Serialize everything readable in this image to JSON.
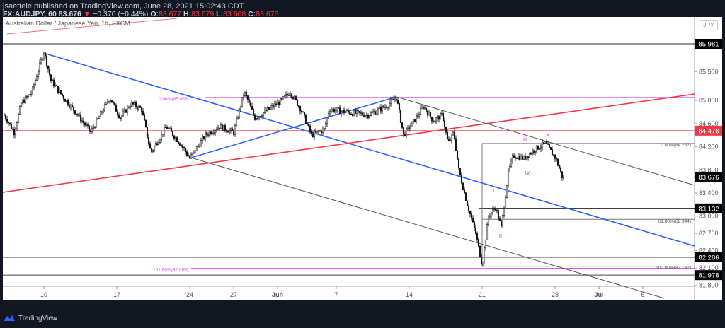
{
  "header": {
    "publisher_line": "jsaettele published on TradingView.com, June 28, 2021 15:02:43 CDT",
    "symbol": "FX:AUDJPY, 60",
    "last": "83.676",
    "change_arrow": "▼",
    "change": "−0.370 (−0.44%)",
    "o_label": "O:",
    "o": "83.677",
    "h_label": "H:",
    "h": "83.679",
    "l_label": "L:",
    "l": "83.668",
    "c_label": "C:",
    "c": "83.676"
  },
  "chart_title": "Australian Dollar / Japanese Yen, 1h, FXCM",
  "currency_button": "JPY",
  "footer": {
    "brand": "TradingView"
  },
  "colors": {
    "background": "#131722",
    "panel": "#ffffff",
    "blue_trend": "#2962ff",
    "red_trend": "#f23645",
    "fib": "#e040fb",
    "last_price_badge": "#f23645",
    "level_badge": "#000000"
  },
  "chart_data": {
    "type": "candlestick",
    "title": "Australian Dollar / Japanese Yen, 1h, FXCM",
    "xlabel": "",
    "ylabel": "JPY",
    "ylim": [
      81.6,
      86.3
    ],
    "x_ticks": [
      "10",
      "17",
      "24",
      "27",
      "Jun",
      "7",
      "14",
      "21",
      "28",
      "Jul",
      "6"
    ],
    "y_ticks": [
      "85.500",
      "85.000",
      "84.600",
      "84.200",
      "83.800",
      "83.400",
      "83.000",
      "82.700",
      "82.400",
      "82.100",
      "81.800"
    ],
    "price_badges": [
      {
        "value": "85.981",
        "color": "#000000"
      },
      {
        "value": "84.478",
        "color": "#f23645"
      },
      {
        "value": "83.676",
        "color": "#000000"
      },
      {
        "value": "83.132",
        "color": "#000000"
      },
      {
        "value": "82.286",
        "color": "#000000"
      },
      {
        "value": "81.978",
        "color": "#000000"
      }
    ],
    "horizontal_levels": [
      85.981,
      84.478,
      83.132,
      82.286,
      81.978
    ],
    "fib_annotations": [
      {
        "label": "0.00%(85.053)",
        "price": 85.053,
        "color": "#e040fb"
      },
      {
        "label": "161.80%(82.095)",
        "price": 82.095,
        "color": "#e040fb"
      },
      {
        "label": "0.00%(84.257)",
        "price": 84.257,
        "color": "#555555"
      },
      {
        "label": "61.80%(82.944)",
        "price": 82.944,
        "color": "#555555"
      },
      {
        "label": "100.00%(82.132)",
        "price": 82.132,
        "color": "#555555"
      }
    ],
    "wave_labels": [
      "i",
      "ii",
      "iii",
      "iv",
      "v"
    ],
    "key_points": [
      {
        "date": "May 10",
        "price": 85.85,
        "note": "high"
      },
      {
        "date": "May 24",
        "price": 84.0,
        "note": "low"
      },
      {
        "date": "Jun 11",
        "price": 85.05,
        "note": "high"
      },
      {
        "date": "Jun 21",
        "price": 82.13,
        "note": "low"
      },
      {
        "date": "Jun 25",
        "price": 84.26,
        "note": "wave v high"
      },
      {
        "date": "Jun 28",
        "price": 83.676,
        "note": "last"
      }
    ],
    "grid": false
  }
}
